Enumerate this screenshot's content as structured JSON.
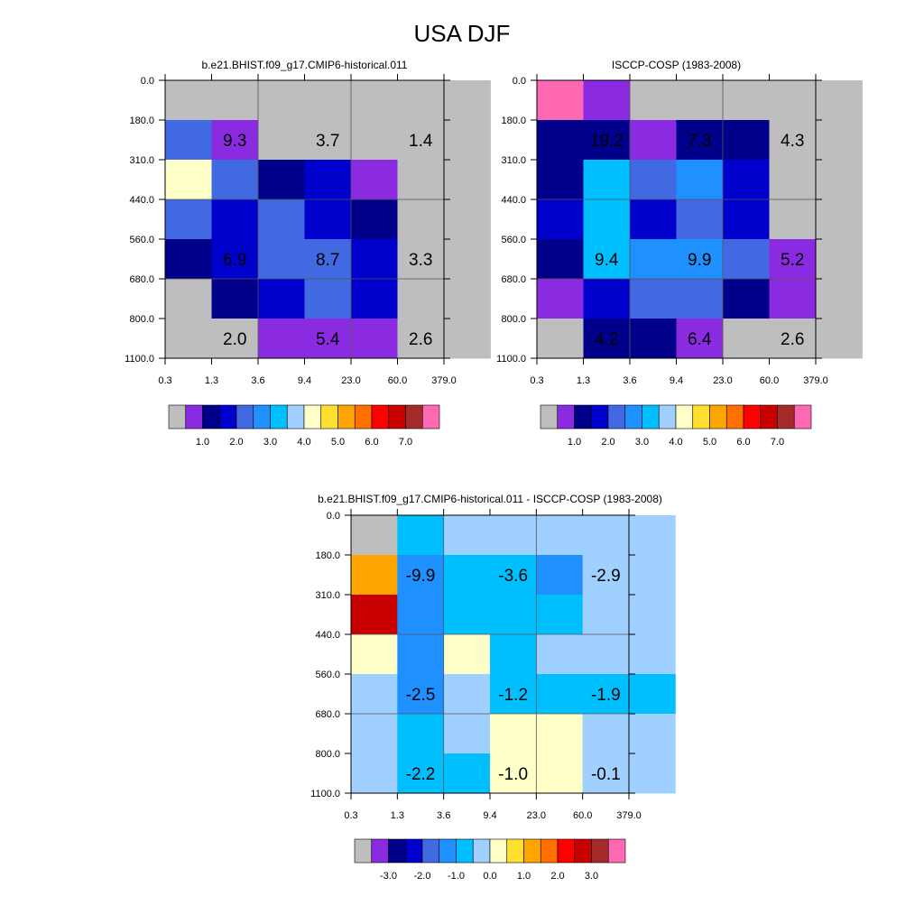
{
  "title": "USA DJF",
  "palette": [
    "#bebebe",
    "#8a2be2",
    "#00008b",
    "#0000cd",
    "#4169e1",
    "#1e90ff",
    "#00bfff",
    "#a0d0ff",
    "#ffffc8",
    "#ffe030",
    "#ffa500",
    "#ff7000",
    "#ff0000",
    "#c80000",
    "#a52a2a",
    "#ff69b4"
  ],
  "chart_data": [
    {
      "type": "heatmap",
      "title": "b.e21.BHIST.f09_g17.CMIP6-historical.011",
      "x_ticks": [
        "0.3",
        "1.3",
        "3.6",
        "9.4",
        "23.0",
        "60.0",
        "379.0"
      ],
      "y_ticks": [
        "0.0",
        "180.0",
        "310.0",
        "440.0",
        "560.0",
        "680.0",
        "800.0",
        "1100.0"
      ],
      "cells": [
        [
          0,
          0,
          0,
          0,
          0,
          0,
          0
        ],
        [
          4,
          1,
          0,
          0,
          0,
          0,
          0
        ],
        [
          8,
          4,
          2,
          3,
          1,
          0,
          0
        ],
        [
          4,
          3,
          4,
          3,
          2,
          0,
          0
        ],
        [
          2,
          3,
          4,
          4,
          3,
          0,
          0
        ],
        [
          0,
          2,
          3,
          4,
          3,
          0,
          0
        ],
        [
          0,
          0,
          1,
          1,
          1,
          0,
          0
        ]
      ],
      "values": [
        {
          "text": "9.3",
          "row": 1,
          "col": 1
        },
        {
          "text": "3.7",
          "row": 1,
          "col": 3
        },
        {
          "text": "1.4",
          "row": 1,
          "col": 5
        },
        {
          "text": "6.9",
          "row": 4,
          "col": 1
        },
        {
          "text": "8.7",
          "row": 4,
          "col": 3
        },
        {
          "text": "3.3",
          "row": 4,
          "col": 5
        },
        {
          "text": "2.0",
          "row": 6,
          "col": 1
        },
        {
          "text": "5.4",
          "row": 6,
          "col": 3
        },
        {
          "text": "2.6",
          "row": 6,
          "col": 5
        }
      ],
      "colorbar": {
        "labels": [
          "1.0",
          "2.0",
          "3.0",
          "4.0",
          "5.0",
          "6.0",
          "7.0"
        ]
      }
    },
    {
      "type": "heatmap",
      "title": "ISCCP-COSP (1983-2008)",
      "x_ticks": [
        "0.3",
        "1.3",
        "3.6",
        "9.4",
        "23.0",
        "60.0",
        "379.0"
      ],
      "y_ticks": [
        "0.0",
        "180.0",
        "310.0",
        "440.0",
        "560.0",
        "680.0",
        "800.0",
        "1100.0"
      ],
      "cells": [
        [
          15,
          1,
          0,
          0,
          0,
          0,
          0
        ],
        [
          2,
          2,
          1,
          2,
          2,
          0,
          0
        ],
        [
          2,
          6,
          4,
          5,
          3,
          0,
          0
        ],
        [
          3,
          6,
          3,
          4,
          3,
          0,
          0
        ],
        [
          2,
          6,
          5,
          5,
          4,
          1,
          0
        ],
        [
          1,
          3,
          4,
          4,
          2,
          1,
          0
        ],
        [
          0,
          2,
          2,
          1,
          0,
          0,
          0
        ]
      ],
      "values": [
        {
          "text": "19.2",
          "row": 1,
          "col": 1
        },
        {
          "text": "7.3",
          "row": 1,
          "col": 3
        },
        {
          "text": "4.3",
          "row": 1,
          "col": 5
        },
        {
          "text": "9.4",
          "row": 4,
          "col": 1
        },
        {
          "text": "9.9",
          "row": 4,
          "col": 3
        },
        {
          "text": "5.2",
          "row": 4,
          "col": 5
        },
        {
          "text": "4.2",
          "row": 6,
          "col": 1
        },
        {
          "text": "6.4",
          "row": 6,
          "col": 3
        },
        {
          "text": "2.6",
          "row": 6,
          "col": 5
        }
      ],
      "colorbar": {
        "labels": [
          "1.0",
          "2.0",
          "3.0",
          "4.0",
          "5.0",
          "6.0",
          "7.0"
        ]
      }
    },
    {
      "type": "heatmap",
      "title": "b.e21.BHIST.f09_g17.CMIP6-historical.011 - ISCCP-COSP (1983-2008)",
      "x_ticks": [
        "0.3",
        "1.3",
        "3.6",
        "9.4",
        "23.0",
        "60.0",
        "379.0"
      ],
      "y_ticks": [
        "0.0",
        "180.0",
        "310.0",
        "440.0",
        "560.0",
        "680.0",
        "800.0",
        "1100.0"
      ],
      "cells": [
        [
          0,
          6,
          7,
          7,
          7,
          7,
          7
        ],
        [
          10,
          5,
          6,
          6,
          5,
          7,
          7
        ],
        [
          13,
          5,
          6,
          6,
          6,
          7,
          7
        ],
        [
          8,
          5,
          8,
          6,
          7,
          7,
          7
        ],
        [
          7,
          5,
          7,
          6,
          6,
          6,
          6
        ],
        [
          7,
          6,
          7,
          8,
          8,
          7,
          7
        ],
        [
          7,
          6,
          6,
          8,
          8,
          7,
          7
        ]
      ],
      "values": [
        {
          "text": "-9.9",
          "row": 1,
          "col": 1
        },
        {
          "text": "-3.6",
          "row": 1,
          "col": 3
        },
        {
          "text": "-2.9",
          "row": 1,
          "col": 5
        },
        {
          "text": "-2.5",
          "row": 4,
          "col": 1
        },
        {
          "text": "-1.2",
          "row": 4,
          "col": 3
        },
        {
          "text": "-1.9",
          "row": 4,
          "col": 5
        },
        {
          "text": "-2.2",
          "row": 6,
          "col": 1
        },
        {
          "text": "-1.0",
          "row": 6,
          "col": 3
        },
        {
          "text": "-0.1",
          "row": 6,
          "col": 5
        }
      ],
      "colorbar": {
        "labels": [
          "-3.0",
          "-2.0",
          "-1.0",
          "0.0",
          "1.0",
          "2.0",
          "3.0"
        ]
      }
    }
  ]
}
